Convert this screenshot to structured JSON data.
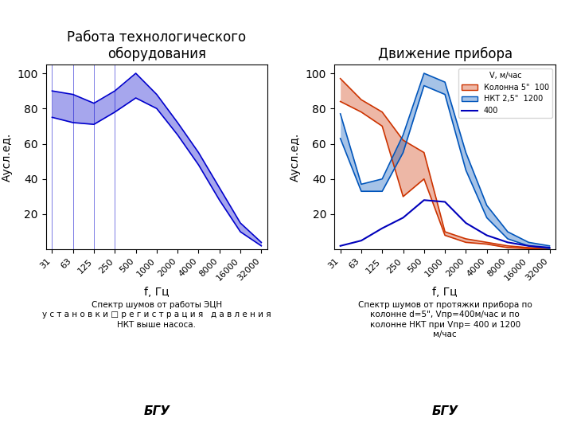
{
  "chart_data": [
    {
      "type": "range_area",
      "title": "Работа технологического\nоборудования",
      "xlabel": "f, Гц",
      "ylabel": "Аусл.ед.",
      "categories": [
        "31",
        "63",
        "125",
        "250",
        "500",
        "1000",
        "2000",
        "4000",
        "8000",
        "16000",
        "32000"
      ],
      "ylim": [
        0,
        105
      ],
      "yticks": [
        20,
        40,
        60,
        80,
        100
      ],
      "grid": false,
      "vertical_lines": [
        "31",
        "63",
        "125",
        "250"
      ],
      "series": [
        {
          "type": "band",
          "color": "#0000cc",
          "upper": [
            90,
            88,
            83,
            90,
            100,
            88,
            72,
            55,
            35,
            15,
            4
          ],
          "lower": [
            75,
            72,
            71,
            78,
            86,
            80,
            65,
            48,
            28,
            10,
            2
          ]
        }
      ],
      "annotations": [
        "Спектр шумов от работы ЭЦН\nу с т а н о в к и □ р е г и с т р а ц и я   д а в л е н и я\nНКТ выше насоса.",
        "БГУ"
      ]
    },
    {
      "type": "range_area",
      "title": "Движение прибора",
      "xlabel": "f, Гц",
      "ylabel": "Аусл.ед.",
      "categories": [
        "31",
        "63",
        "125",
        "250",
        "500",
        "1000",
        "2000",
        "4000",
        "8000",
        "16000",
        "32000"
      ],
      "ylim": [
        0,
        105
      ],
      "yticks": [
        20,
        40,
        60,
        80,
        100
      ],
      "grid": false,
      "legend": "upper right",
      "legend_title": "V, м/час",
      "series": [
        {
          "name": "Колонна 5\"  100",
          "type": "band",
          "color": "#cc3300",
          "upper": [
            97,
            85,
            78,
            62,
            55,
            10,
            6,
            4,
            2,
            1,
            0.5
          ],
          "lower": [
            84,
            78,
            70,
            30,
            40,
            8,
            4,
            3,
            1,
            0.5,
            0.2
          ]
        },
        {
          "name": "НКТ 2,5\"  1200",
          "type": "band",
          "color": "#0055bb",
          "upper": [
            77,
            37,
            40,
            65,
            100,
            95,
            55,
            25,
            10,
            4,
            2
          ],
          "lower": [
            63,
            33,
            33,
            55,
            93,
            88,
            45,
            18,
            6,
            2,
            0.5
          ]
        },
        {
          "name": "400",
          "type": "line",
          "color": "#0000bb",
          "values": [
            2,
            5,
            12,
            18,
            28,
            27,
            15,
            8,
            4,
            2,
            1
          ]
        }
      ],
      "annotations": [
        "Спектр шумов от протяжки прибора по\nколонне d=5\", Vпр=400м/час и по\nколонне НКТ при Vпр= 400 и 1200\nм/час",
        "БГУ"
      ]
    }
  ]
}
